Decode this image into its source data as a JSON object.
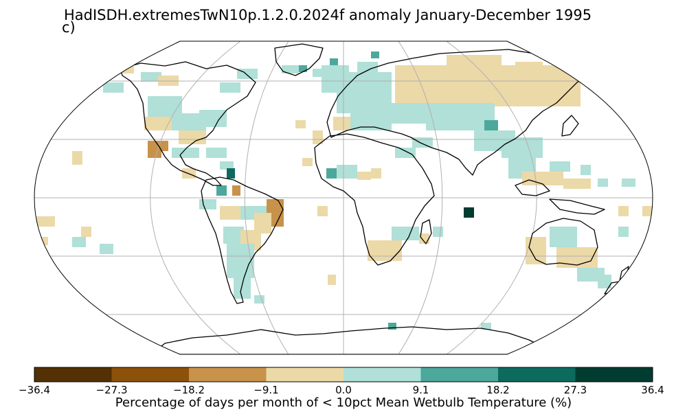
{
  "title": "HadISDH.extremesTwN10p.1.2.0.2024f anomaly January-December 1995",
  "panel_label": "c)",
  "colorbar": {
    "label": "Percentage of days per month of < 10pct Mean Wetbulb Temperature (%)",
    "ticks": [
      "−36.4",
      "−27.3",
      "−18.2",
      "−9.1",
      "0.0",
      "9.1",
      "18.2",
      "27.3",
      "36.4"
    ],
    "colors": [
      "#543005",
      "#8c510a",
      "#c8924a",
      "#ecd9a8",
      "#b0e0d8",
      "#4da89c",
      "#0d6b5e",
      "#003c30"
    ]
  },
  "map": {
    "projection": "Robinson",
    "ocean_color": "#ffffff",
    "gridline_color": "#b0b0b0",
    "coastline_color": "#000000"
  }
}
